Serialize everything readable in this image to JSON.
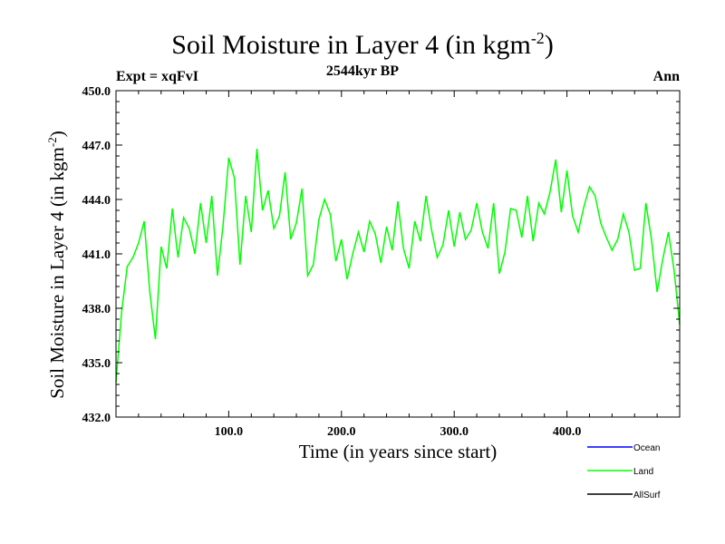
{
  "chart_data": {
    "type": "line",
    "title": "Soil Moisture in Layer 4 (in kgm",
    "title_superscript": "-2",
    "title_suffix": ")",
    "subtitle_left": "Expt = xqFvI",
    "subtitle_center": "2544kyr BP",
    "subtitle_right": "Ann",
    "xlabel": "Time (in years since start)",
    "ylabel": "Soil Moisture in Layer 4 (in kgm",
    "ylabel_superscript": "-2",
    "ylabel_suffix": ")",
    "xlim": [
      0,
      500
    ],
    "ylim": [
      432,
      450
    ],
    "xticks": [
      100,
      200,
      300,
      400
    ],
    "xtick_labels": [
      "100.0",
      "200.0",
      "300.0",
      "400.0"
    ],
    "yticks": [
      432,
      435,
      438,
      441,
      444,
      447,
      450
    ],
    "ytick_labels": [
      "432.0",
      "435.0",
      "438.0",
      "441.0",
      "444.0",
      "447.0",
      "450.0"
    ],
    "legend": [
      {
        "name": "Ocean",
        "color": "#0000ff"
      },
      {
        "name": "Land",
        "color": "#00ff00"
      },
      {
        "name": "AllSurf",
        "color": "#000000"
      }
    ],
    "legend_position": "bottom-right",
    "series": [
      {
        "name": "Land",
        "color": "#00ff00",
        "x": [
          0,
          5,
          10,
          15,
          20,
          25,
          30,
          35,
          40,
          45,
          50,
          55,
          60,
          65,
          70,
          75,
          80,
          85,
          90,
          95,
          100,
          105,
          110,
          115,
          120,
          125,
          130,
          135,
          140,
          145,
          150,
          155,
          160,
          165,
          170,
          175,
          180,
          185,
          190,
          195,
          200,
          205,
          210,
          215,
          220,
          225,
          230,
          235,
          240,
          245,
          250,
          255,
          260,
          265,
          270,
          275,
          280,
          285,
          290,
          295,
          300,
          305,
          310,
          315,
          320,
          325,
          330,
          335,
          340,
          345,
          350,
          355,
          360,
          365,
          370,
          375,
          380,
          385,
          390,
          395,
          400,
          405,
          410,
          415,
          420,
          425,
          430,
          435,
          440,
          445,
          450,
          455,
          460,
          465,
          470,
          475,
          480,
          485,
          490,
          495,
          500
        ],
        "values": [
          433.9,
          437.8,
          440.3,
          440.8,
          441.6,
          442.8,
          438.9,
          436.3,
          441.4,
          440.2,
          443.5,
          440.8,
          443.0,
          442.4,
          441.0,
          443.8,
          441.6,
          444.2,
          439.8,
          442.6,
          446.3,
          445.2,
          440.4,
          444.2,
          442.2,
          446.8,
          443.4,
          444.5,
          442.4,
          443.1,
          445.5,
          441.8,
          442.7,
          444.6,
          439.8,
          440.4,
          442.9,
          444.0,
          443.2,
          440.6,
          441.8,
          439.6,
          441.0,
          442.2,
          441.1,
          442.8,
          442.1,
          440.5,
          442.5,
          441.2,
          443.9,
          441.3,
          440.2,
          442.8,
          441.7,
          444.2,
          442.3,
          440.8,
          441.5,
          443.4,
          441.4,
          443.3,
          441.8,
          442.3,
          443.8,
          442.2,
          441.3,
          443.8,
          439.9,
          441.1,
          443.5,
          443.4,
          441.9,
          444.2,
          441.7,
          443.8,
          443.2,
          444.4,
          446.2,
          443.3,
          445.6,
          443.1,
          442.2,
          443.6,
          444.7,
          444.2,
          442.7,
          441.9,
          441.2,
          441.8,
          443.2,
          442.2,
          440.1,
          440.2,
          443.8,
          441.8,
          438.9,
          440.7,
          442.2,
          440.1,
          437.1
        ]
      }
    ]
  }
}
